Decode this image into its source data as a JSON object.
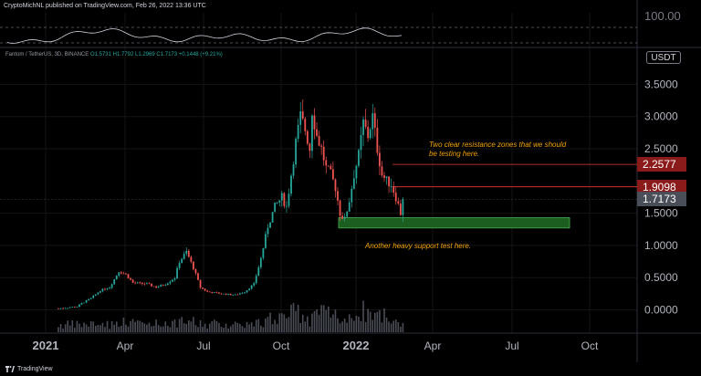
{
  "header": {
    "text": "CryptoMichNL published on TradingView.com, Feb 26, 2022 13:36 UTC"
  },
  "symbol_bar": {
    "name": "Fantom / TetherUS, 3D, BINANCE",
    "o_label": "O",
    "o": "1.5731",
    "h_label": "H",
    "h": "1.7792",
    "l_label": "L",
    "l": "1.2969",
    "c_label": "C",
    "c": "1.7173",
    "change": "+0.1448 (+9.21%)"
  },
  "currency_button": "USDT",
  "price_tags": {
    "resistance_upper": {
      "label": "2.2577",
      "value": 2.2577,
      "color": "#8b1a1a"
    },
    "resistance_lower": {
      "label": "1.9098",
      "value": 1.9098,
      "color": "#8b1a1a"
    },
    "last_price": {
      "label": "1.7173",
      "value": 1.7173,
      "color": "#4a4e59"
    }
  },
  "annotations": {
    "resistance": [
      "Two clear resistance zones that we should",
      "be testing here."
    ],
    "support": "Another heavy support test here."
  },
  "footer": {
    "brand": "TradingView"
  },
  "colors": {
    "up": "#26a69a",
    "down": "#ef5350",
    "support_zone": "#1b5e20",
    "support_border": "#4caf50",
    "resistance_line": "#e53935",
    "annotation": "#f0a30a"
  },
  "chart_data": {
    "type": "candlestick",
    "timeframe": "3D",
    "ylim": [
      -0.3,
      3.75
    ],
    "y_ticks": [
      {
        "label": "3.5000",
        "value": 3.5
      },
      {
        "label": "3.0000",
        "value": 3.0
      },
      {
        "label": "2.5000",
        "value": 2.5
      },
      {
        "label": "1.5000",
        "value": 1.5
      },
      {
        "label": "1.0000",
        "value": 1.0
      },
      {
        "label": "0.5000",
        "value": 0.5
      },
      {
        "label": "0.0000",
        "value": 0.0
      }
    ],
    "x_ticks": [
      "2021",
      "Apr",
      "Jul",
      "Oct",
      "2022",
      "Apr",
      "Jul",
      "Oct"
    ],
    "support_zone": [
      1.27,
      1.43
    ],
    "resistance_levels": [
      2.2577,
      1.9098
    ],
    "anchors": [
      [
        0,
        0.02
      ],
      [
        8,
        0.05
      ],
      [
        10,
        0.1
      ],
      [
        14,
        0.18
      ],
      [
        18,
        0.3
      ],
      [
        22,
        0.35
      ],
      [
        26,
        0.6
      ],
      [
        29,
        0.55
      ],
      [
        32,
        0.42
      ],
      [
        38,
        0.4
      ],
      [
        42,
        0.35
      ],
      [
        46,
        0.4
      ],
      [
        50,
        0.5
      ],
      [
        52,
        0.75
      ],
      [
        55,
        0.9
      ],
      [
        58,
        0.65
      ],
      [
        61,
        0.35
      ],
      [
        64,
        0.28
      ],
      [
        70,
        0.25
      ],
      [
        76,
        0.23
      ],
      [
        80,
        0.28
      ],
      [
        84,
        0.4
      ],
      [
        87,
        0.8
      ],
      [
        90,
        1.3
      ],
      [
        93,
        1.6
      ],
      [
        96,
        1.75
      ],
      [
        98,
        1.6
      ],
      [
        100,
        2.1
      ],
      [
        102,
        2.6
      ],
      [
        104,
        3.0
      ],
      [
        106,
        2.8
      ],
      [
        108,
        2.5
      ],
      [
        109,
        3.1
      ],
      [
        111,
        2.7
      ],
      [
        113,
        2.5
      ],
      [
        115,
        2.2
      ],
      [
        117,
        2.1
      ],
      [
        119,
        1.9
      ],
      [
        121,
        1.5
      ],
      [
        123,
        1.4
      ],
      [
        125,
        1.7
      ],
      [
        127,
        2.1
      ],
      [
        129,
        2.4
      ],
      [
        131,
        2.9
      ],
      [
        133,
        2.7
      ],
      [
        135,
        3.0
      ],
      [
        137,
        2.5
      ],
      [
        139,
        2.1
      ],
      [
        141,
        2.0
      ],
      [
        143,
        1.95
      ],
      [
        145,
        1.75
      ],
      [
        147,
        1.5
      ],
      [
        148,
        1.72
      ]
    ],
    "volume_seed": 7
  }
}
